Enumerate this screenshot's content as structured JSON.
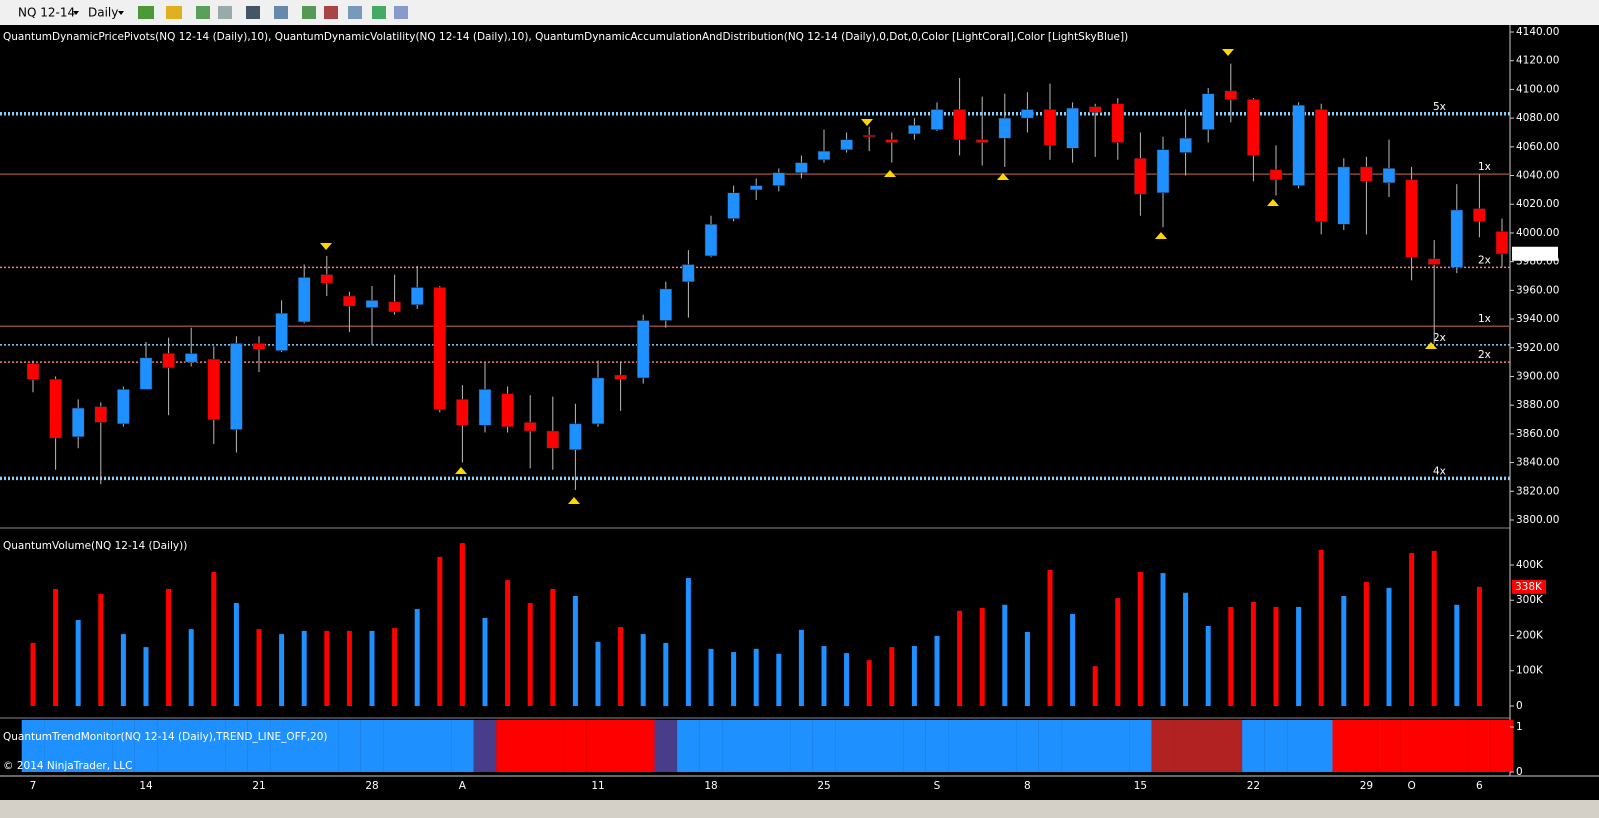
{
  "toolbar": {
    "instrument": "NQ 12-14",
    "period": "Daily"
  },
  "chart_data": {
    "type": "candlestick",
    "indicator_label": "QuantumDynamicPricePivots(NQ 12-14 (Daily),10), QuantumDynamicVolatility(NQ 12-14 (Daily),10), QuantumDynamicAccumulationAndDistribution(NQ 12-14 (Daily),0,Dot,0,Color [LightCoral],Color [LightSkyBlue])",
    "volume_label": "QuantumVolume(NQ 12-14 (Daily))",
    "trend_label": "QuantumTrendMonitor(NQ 12-14 (Daily),TREND_LINE_OFF,20)",
    "copyright": "© 2014 NinjaTrader, LLC",
    "up_color": "#1e90ff",
    "down_color": "#ff0000",
    "categories": [
      "7",
      null,
      null,
      null,
      null,
      "14",
      null,
      null,
      null,
      null,
      "21",
      null,
      null,
      null,
      null,
      "28",
      null,
      null,
      null,
      "A",
      null,
      null,
      null,
      null,
      null,
      "11",
      null,
      null,
      null,
      null,
      "18",
      null,
      null,
      null,
      null,
      "25",
      null,
      null,
      null,
      null,
      "S",
      null,
      null,
      null,
      "8",
      null,
      null,
      null,
      null,
      "15",
      null,
      null,
      null,
      null,
      "22",
      null,
      null,
      null,
      null,
      "29",
      null,
      "O",
      null,
      null,
      "6",
      null
    ],
    "open": [
      3909,
      3898,
      3858,
      3879,
      3867,
      3891,
      3916,
      3910,
      3912,
      3863,
      3923,
      3918,
      3938,
      3971,
      3956,
      3948,
      3952,
      3950,
      3962,
      3884,
      3866,
      3888,
      3868,
      3862,
      3849,
      3867,
      3901,
      3899,
      3939,
      3966,
      3984,
      4010,
      4030,
      4033,
      4042,
      4051,
      4058,
      4068,
      4065,
      4069,
      4072,
      4086,
      4065,
      4066,
      4080,
      4086,
      4059,
      4088,
      4090,
      4052,
      4028,
      4056,
      4072,
      4099,
      4093,
      4044,
      4033,
      4086,
      4006,
      4046,
      4035,
      4037,
      3982,
      3976,
      4017,
      4001
    ],
    "high": [
      3911,
      3900,
      3884,
      3882,
      3893,
      3924,
      3927,
      3934,
      3921,
      3928,
      3928,
      3953,
      3978,
      3984,
      3959,
      3963,
      3971,
      3977,
      3963,
      3894,
      3910,
      3893,
      3887,
      3886,
      3881,
      3911,
      3910,
      3943,
      3966,
      3988,
      4012,
      4033,
      4038,
      4045,
      4054,
      4072,
      4070,
      4074,
      4070,
      4080,
      4091,
      4108,
      4095,
      4097,
      4098,
      4104,
      4091,
      4090,
      4094,
      4070,
      4067,
      4086,
      4101,
      4118,
      4094,
      4061,
      4091,
      4090,
      4052,
      4053,
      4065,
      4046,
      3995,
      4034,
      4041,
      4010
    ],
    "low": [
      3889,
      3835,
      3850,
      3825,
      3865,
      3891,
      3873,
      3907,
      3853,
      3847,
      3903,
      3917,
      3937,
      3956,
      3931,
      3922,
      3943,
      3947,
      3875,
      3840,
      3861,
      3861,
      3836,
      3835,
      3821,
      3865,
      3876,
      3895,
      3934,
      3941,
      3983,
      4008,
      4023,
      4029,
      4038,
      4049,
      4056,
      4057,
      4049,
      4065,
      4071,
      4054,
      4047,
      4046,
      4070,
      4051,
      4049,
      4053,
      4051,
      4012,
      4004,
      4040,
      4063,
      4077,
      4036,
      4026,
      4031,
      3999,
      4002,
      3999,
      4025,
      3967,
      3923,
      3972,
      3997,
      3976
    ],
    "close": [
      3898,
      3857,
      3878,
      3868,
      3891,
      3913,
      3906,
      3916,
      3870,
      3923,
      3919,
      3944,
      3969,
      3965,
      3949,
      3953,
      3945,
      3962,
      3877,
      3866,
      3891,
      3865,
      3862,
      3850,
      3867,
      3899,
      3898,
      3939,
      3961,
      3978,
      4006,
      4028,
      4033,
      4042,
      4049,
      4057,
      4065,
      4067,
      4063,
      4075,
      4086,
      4065,
      4063,
      4080,
      4086,
      4061,
      4087,
      4084,
      4063,
      4027,
      4058,
      4066,
      4097,
      4093,
      4054,
      4037,
      4089,
      4008,
      4046,
      4036,
      4045,
      3983,
      3978,
      4016,
      4008,
      3985.5
    ],
    "last_price": {
      "value": 3985.5,
      "label": "3985.50"
    },
    "ylim": [
      3800,
      4140
    ],
    "yticks": [
      {
        "value": 3800,
        "label": "3800.00"
      },
      {
        "value": 3820,
        "label": "3820.00"
      },
      {
        "value": 3840,
        "label": "3840.00"
      },
      {
        "value": 3860,
        "label": "3860.00"
      },
      {
        "value": 3880,
        "label": "3880.00"
      },
      {
        "value": 3900,
        "label": "3900.00"
      },
      {
        "value": 3920,
        "label": "3920.00"
      },
      {
        "value": 3940,
        "label": "3940.00"
      },
      {
        "value": 3960,
        "label": "3960.00"
      },
      {
        "value": 3980,
        "label": "3980.00"
      },
      {
        "value": 4000,
        "label": "4000.00"
      },
      {
        "value": 4020,
        "label": "4020.00"
      },
      {
        "value": 4040,
        "label": "4040.00"
      },
      {
        "value": 4060,
        "label": "4060.00"
      },
      {
        "value": 4080,
        "label": "4080.00"
      },
      {
        "value": 4100,
        "label": "4100.00"
      },
      {
        "value": 4120,
        "label": "4120.00"
      },
      {
        "value": 4140,
        "label": "4140.00"
      }
    ],
    "levels": [
      {
        "value": 4083,
        "color": "#87cefa",
        "dotted": true,
        "weight": "heavy",
        "label": "5x"
      },
      {
        "value": 4041,
        "color": "#8b4a3a",
        "dotted": false,
        "weight": "light",
        "label": "1x"
      },
      {
        "value": 3976,
        "color": "#f08080",
        "dotted": true,
        "weight": "light",
        "label": "2x"
      },
      {
        "value": 3935,
        "color": "#8b4a3a",
        "dotted": false,
        "weight": "light",
        "label": "1x"
      },
      {
        "value": 3922,
        "color": "#87cefa",
        "dotted": true,
        "weight": "light",
        "label": "2x"
      },
      {
        "value": 3910,
        "color": "#f08080",
        "dotted": true,
        "weight": "light",
        "label": "2x"
      },
      {
        "value": 3829,
        "color": "#87cefa",
        "dotted": true,
        "weight": "heavy",
        "label": "4x"
      }
    ],
    "volume": [
      179000,
      332000,
      244000,
      318000,
      204000,
      167000,
      332000,
      218000,
      380000,
      292000,
      218000,
      204000,
      213000,
      213000,
      213000,
      213000,
      221000,
      275000,
      423000,
      462000,
      250000,
      357000,
      292000,
      332000,
      312000,
      182000,
      224000,
      204000,
      179000,
      363000,
      162000,
      153000,
      162000,
      148000,
      216000,
      170000,
      150000,
      130000,
      167000,
      170000,
      199000,
      270000,
      278000,
      287000,
      210000,
      386000,
      261000,
      113000,
      306000,
      380000,
      377000,
      321000,
      227000,
      281000,
      295000,
      281000,
      281000,
      443000,
      312000,
      352000,
      335000,
      434000,
      440000,
      287000,
      338000,
      null
    ],
    "last_volume": {
      "value": 338000,
      "label": "338K"
    },
    "volume_ylim": [
      0,
      485000
    ],
    "volume_ticks": [
      {
        "value": 0,
        "label": "0"
      },
      {
        "value": 100000,
        "label": "100K"
      },
      {
        "value": 200000,
        "label": "200K"
      },
      {
        "value": 300000,
        "label": "300K"
      },
      {
        "value": 400000,
        "label": "400K"
      }
    ],
    "trend_colors": [
      "#1e90ff",
      "#1e90ff",
      "#1e90ff",
      "#1e90ff",
      "#1e90ff",
      "#1e90ff",
      "#1e90ff",
      "#1e90ff",
      "#1e90ff",
      "#1e90ff",
      "#1e90ff",
      "#1e90ff",
      "#1e90ff",
      "#1e90ff",
      "#1e90ff",
      "#1e90ff",
      "#1e90ff",
      "#1e90ff",
      "#1e90ff",
      "#1e90ff",
      "#483d8b",
      "#ff0000",
      "#ff0000",
      "#ff0000",
      "#ff0000",
      "#ff0000",
      "#ff0000",
      "#ff0000",
      "#483d8b",
      "#1e90ff",
      "#1e90ff",
      "#1e90ff",
      "#1e90ff",
      "#1e90ff",
      "#1e90ff",
      "#1e90ff",
      "#1e90ff",
      "#1e90ff",
      "#1e90ff",
      "#1e90ff",
      "#1e90ff",
      "#1e90ff",
      "#1e90ff",
      "#1e90ff",
      "#1e90ff",
      "#1e90ff",
      "#1e90ff",
      "#1e90ff",
      "#1e90ff",
      "#1e90ff",
      "#b22222",
      "#b22222",
      "#b22222",
      "#b22222",
      "#1e90ff",
      "#1e90ff",
      "#1e90ff",
      "#1e90ff",
      "#ff0000",
      "#ff0000",
      "#ff0000",
      "#ff0000",
      "#ff0000",
      "#ff0000",
      "#ff0000",
      "#ff0000"
    ],
    "trend_ylim": [
      0,
      1
    ],
    "trend_ticks": [
      0,
      1
    ]
  }
}
